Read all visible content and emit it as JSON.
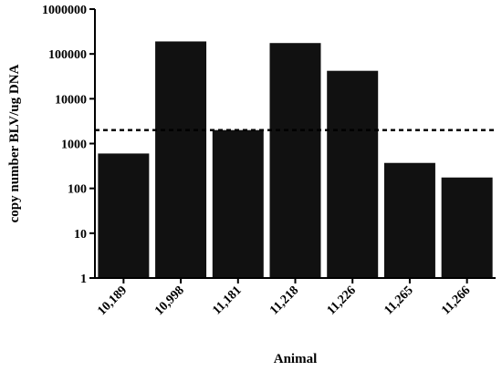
{
  "chart_data": {
    "type": "bar",
    "title": "",
    "xlabel": "Animal",
    "ylabel": "copy number BLV/ug DNA",
    "yscale": "log",
    "ylim": [
      1,
      1000000
    ],
    "yticks": [
      1,
      10,
      100,
      1000,
      10000,
      100000,
      1000000
    ],
    "ytick_labels": [
      "1",
      "10",
      "100",
      "1000",
      "10000",
      "100000",
      "1000000"
    ],
    "categories": [
      "10,189",
      "10,998",
      "11,181",
      "11,218",
      "11,226",
      "11,265",
      "11,266"
    ],
    "values": [
      600,
      190000,
      2000,
      175000,
      42000,
      370,
      175
    ],
    "reference_line": {
      "value": 2000,
      "style": "dashed"
    },
    "bar_color": "#111111",
    "grid": false,
    "legend": "none"
  }
}
